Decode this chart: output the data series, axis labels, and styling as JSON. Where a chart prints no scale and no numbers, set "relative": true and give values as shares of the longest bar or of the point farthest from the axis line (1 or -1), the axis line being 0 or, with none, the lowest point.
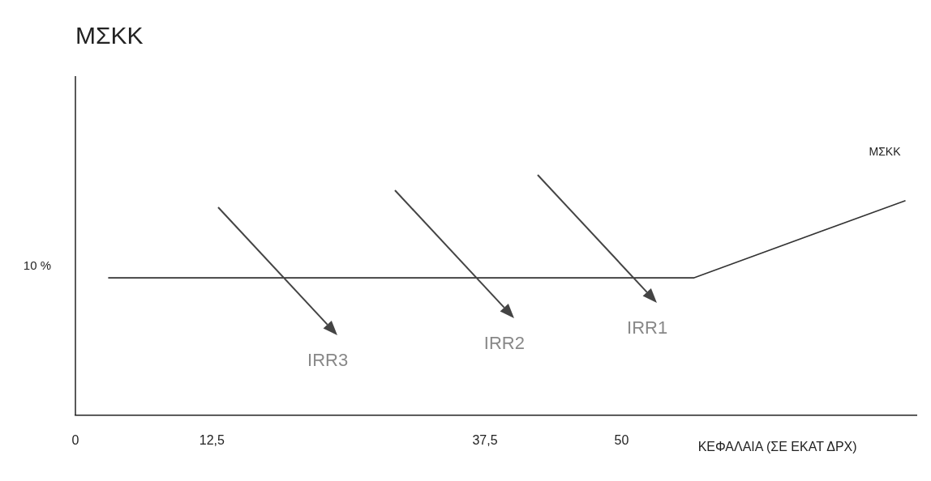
{
  "chart_data": {
    "type": "line",
    "title": "ΜΣΚΚ",
    "xlabel": "ΚΕΦΑΛΑΙΑ (ΣΕ ΕΚΑΤ ΔΡΧ)",
    "relative": true,
    "xlim": [
      0,
      77
    ],
    "xticks": [
      0,
      {
        "value": 12.5,
        "label": "12,5"
      },
      {
        "value": 37.5,
        "label": "37,5"
      },
      50
    ],
    "series": [
      {
        "name": "ΜΣΚΚ",
        "color": "#333333",
        "x": [
          3,
          56.6,
          76
        ],
        "values": [
          0.64,
          0.64,
          1
        ]
      }
    ],
    "annotations": [
      "10 %",
      "IRR3",
      "IRR2",
      "IRR1"
    ],
    "grid": false,
    "legend": false,
    "marker": "none",
    "line_style": "solid"
  }
}
